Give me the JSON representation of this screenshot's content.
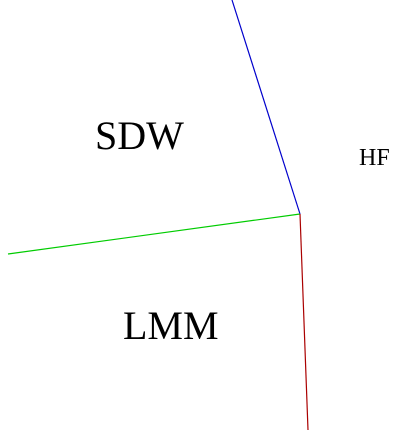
{
  "regions": {
    "sdw": "SDW",
    "hf": "HF",
    "lmm": "LMM"
  },
  "boundaries": {
    "sdw_hf": {
      "color": "#0000cc"
    },
    "sdw_lmm": {
      "color": "#00cc00"
    },
    "lmm_hf": {
      "color": "#aa0000"
    }
  }
}
